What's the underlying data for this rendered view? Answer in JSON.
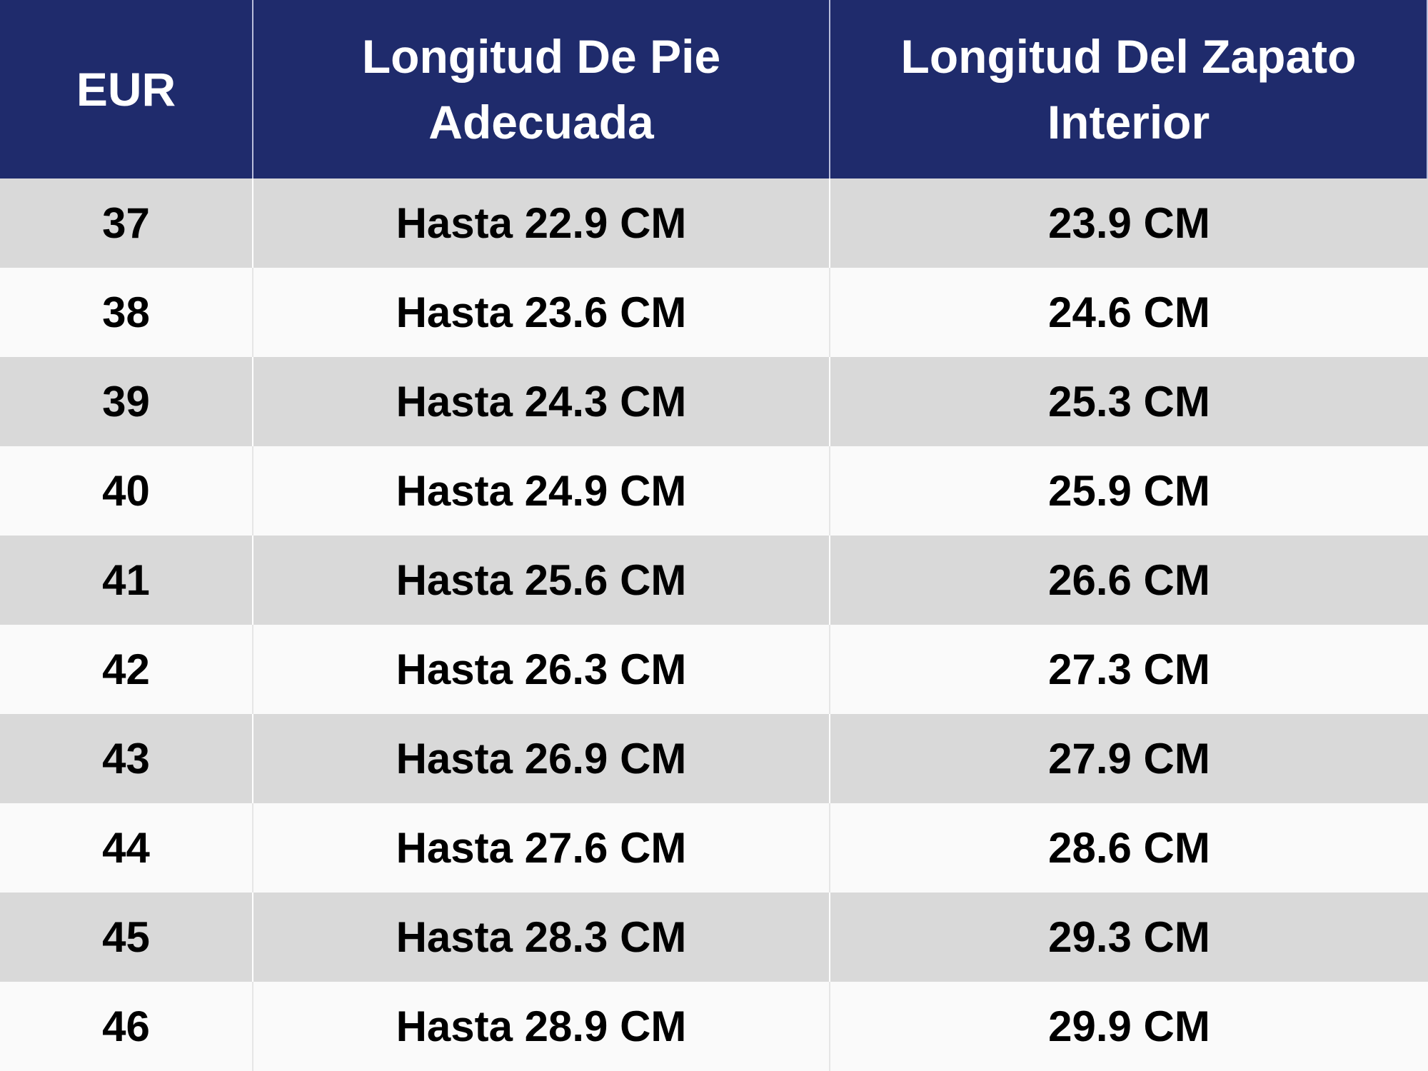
{
  "table": {
    "headers": [
      "EUR",
      "Longitud De Pie Adecuada",
      "Longitud Del Zapato Interior"
    ],
    "rows": [
      [
        "37",
        "Hasta 22.9 CM",
        "23.9 CM"
      ],
      [
        "38",
        "Hasta 23.6 CM",
        "24.6 CM"
      ],
      [
        "39",
        "Hasta 24.3 CM",
        "25.3 CM"
      ],
      [
        "40",
        "Hasta 24.9 CM",
        "25.9 CM"
      ],
      [
        "41",
        "Hasta 25.6 CM",
        "26.6 CM"
      ],
      [
        "42",
        "Hasta 26.3 CM",
        "27.3 CM"
      ],
      [
        "43",
        "Hasta 26.9 CM",
        "27.9 CM"
      ],
      [
        "44",
        "Hasta 27.6 CM",
        "28.6 CM"
      ],
      [
        "45",
        "Hasta 28.3 CM",
        "29.3 CM"
      ],
      [
        "46",
        "Hasta 28.9 CM",
        "29.9 CM"
      ]
    ]
  }
}
